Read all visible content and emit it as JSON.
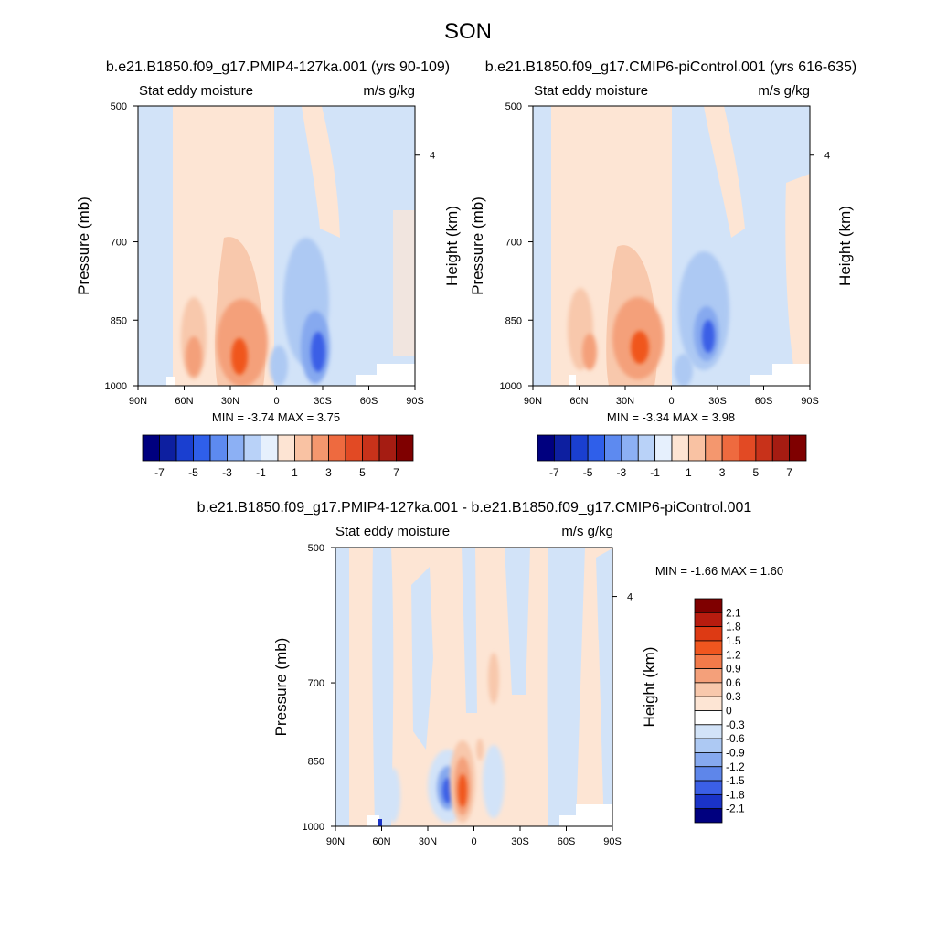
{
  "figure": {
    "title": "SON"
  },
  "panels": [
    {
      "id": "top-left",
      "title": "b.e21.B1850.f09_g17.PMIP4-127ka.001 (yrs 90-109)",
      "left_label": "Stat eddy moisture",
      "right_label": "m/s g/kg",
      "ylabel": "Pressure (mb)",
      "ylabel_right": "Height (km)",
      "stats": "MIN =  -3.74  MAX =   3.75"
    },
    {
      "id": "top-right",
      "title": "b.e21.B1850.f09_g17.CMIP6-piControl.001 (yrs 616-635)",
      "left_label": "Stat eddy moisture",
      "right_label": "m/s g/kg",
      "ylabel": "Pressure (mb)",
      "ylabel_right": "Height (km)",
      "stats": "MIN =  -3.34  MAX =   3.98"
    },
    {
      "id": "bottom",
      "title": "b.e21.B1850.f09_g17.PMIP4-127ka.001 - b.e21.B1850.f09_g17.CMIP6-piControl.001",
      "left_label": "Stat eddy moisture",
      "right_label": "m/s g/kg",
      "ylabel": "Pressure (mb)",
      "ylabel_right": "Height (km)",
      "stats": "MIN =  -1.66  MAX =   1.60"
    }
  ],
  "axes": {
    "x_ticks": [
      "90N",
      "60N",
      "30N",
      "0",
      "30S",
      "60S",
      "90S"
    ],
    "x_values": [
      90,
      60,
      30,
      0,
      -30,
      -60,
      -90
    ],
    "y_ticks": [
      "500",
      "700",
      "850",
      "1000"
    ],
    "y_values": [
      500,
      700,
      850,
      1000
    ],
    "y_scale": "log-pressure",
    "height_ticks": [
      "4"
    ],
    "height_values": [
      4
    ]
  },
  "colorbars": {
    "top": {
      "labels": [
        "-7",
        "-5",
        "-3",
        "-1",
        "1",
        "3",
        "5",
        "7"
      ],
      "colors": [
        "#00007f",
        "#0d1fa0",
        "#1a3fd0",
        "#2f5fea",
        "#5d8af0",
        "#8cb0f4",
        "#b9d2f8",
        "#e6f0fd",
        "#fde4d3",
        "#f9c2a3",
        "#f4976e",
        "#ee6a3f",
        "#e24a24",
        "#c8321a",
        "#a51c12",
        "#7f0000"
      ]
    },
    "bottom": {
      "labels": [
        "2.1",
        "1.8",
        "1.5",
        "1.2",
        "0.9",
        "0.6",
        "0.3",
        "0",
        "-0.3",
        "-0.6",
        "-0.9",
        "-1.2",
        "-1.5",
        "-1.8",
        "-2.1"
      ],
      "colors": [
        "#7f0000",
        "#b71c0f",
        "#dd3a14",
        "#f0561f",
        "#f27a4a",
        "#f4a07a",
        "#f8c8ac",
        "#fde5d4",
        "#ffffff",
        "#d2e3f8",
        "#adc9f3",
        "#86a9ef",
        "#5e86ea",
        "#3b5fe6",
        "#1a33c8",
        "#00007f"
      ]
    }
  },
  "chart_data": [
    {
      "type": "heatmap",
      "title": "b.e21.B1850.f09_g17.PMIP4-127ka.001 (yrs 90-109)",
      "variable": "Stat eddy moisture",
      "units": "m/s g/kg",
      "xlabel": "",
      "ylabel": "Pressure (mb)",
      "xlim": [
        90,
        -90
      ],
      "ylim": [
        1000,
        500
      ],
      "min": -3.74,
      "max": 3.75,
      "levels": [
        -7,
        -5,
        -3,
        -1,
        1,
        3,
        5,
        7
      ],
      "features": [
        {
          "lat": 35,
          "p": 900,
          "value": 3.5
        },
        {
          "lat": 58,
          "p": 880,
          "value": 1.5
        },
        {
          "lat": 32,
          "p": 760,
          "value": 1.0
        },
        {
          "lat": -26,
          "p": 900,
          "value": -3.5
        },
        {
          "lat": -18,
          "p": 780,
          "value": -1.2
        },
        {
          "lat": 0,
          "p": 900,
          "value": -1.5
        },
        {
          "lat": -80,
          "p": 850,
          "value": 0.2
        }
      ]
    },
    {
      "type": "heatmap",
      "title": "b.e21.B1850.f09_g17.CMIP6-piControl.001 (yrs 616-635)",
      "variable": "Stat eddy moisture",
      "units": "m/s g/kg",
      "xlabel": "",
      "ylabel": "Pressure (mb)",
      "xlim": [
        90,
        -90
      ],
      "ylim": [
        1000,
        500
      ],
      "min": -3.34,
      "max": 3.98,
      "levels": [
        -7,
        -5,
        -3,
        -1,
        1,
        3,
        5,
        7
      ],
      "features": [
        {
          "lat": 30,
          "p": 890,
          "value": 3.8
        },
        {
          "lat": 58,
          "p": 880,
          "value": 1.5
        },
        {
          "lat": 32,
          "p": 760,
          "value": 1.0
        },
        {
          "lat": -24,
          "p": 880,
          "value": -3.2
        },
        {
          "lat": -18,
          "p": 780,
          "value": -1.2
        },
        {
          "lat": 0,
          "p": 900,
          "value": -1.5
        }
      ]
    },
    {
      "type": "heatmap",
      "title": "b.e21.B1850.f09_g17.PMIP4-127ka.001 - b.e21.B1850.f09_g17.CMIP6-piControl.001",
      "variable": "Stat eddy moisture",
      "units": "m/s g/kg",
      "xlabel": "",
      "ylabel": "Pressure (mb)",
      "xlim": [
        90,
        -90
      ],
      "ylim": [
        1000,
        500
      ],
      "min": -1.66,
      "max": 1.6,
      "levels": [
        -2.1,
        -1.8,
        -1.5,
        -1.2,
        -0.9,
        -0.6,
        -0.3,
        0,
        0.3,
        0.6,
        0.9,
        1.2,
        1.5,
        1.8,
        2.1
      ],
      "features": [
        {
          "lat": 10,
          "p": 900,
          "value": 1.5
        },
        {
          "lat": 18,
          "p": 900,
          "value": -1.6
        },
        {
          "lat": -12,
          "p": 870,
          "value": -0.5
        },
        {
          "lat": -15,
          "p": 710,
          "value": 0.4
        },
        {
          "lat": -55,
          "p": 700,
          "value": -0.3
        }
      ]
    }
  ]
}
